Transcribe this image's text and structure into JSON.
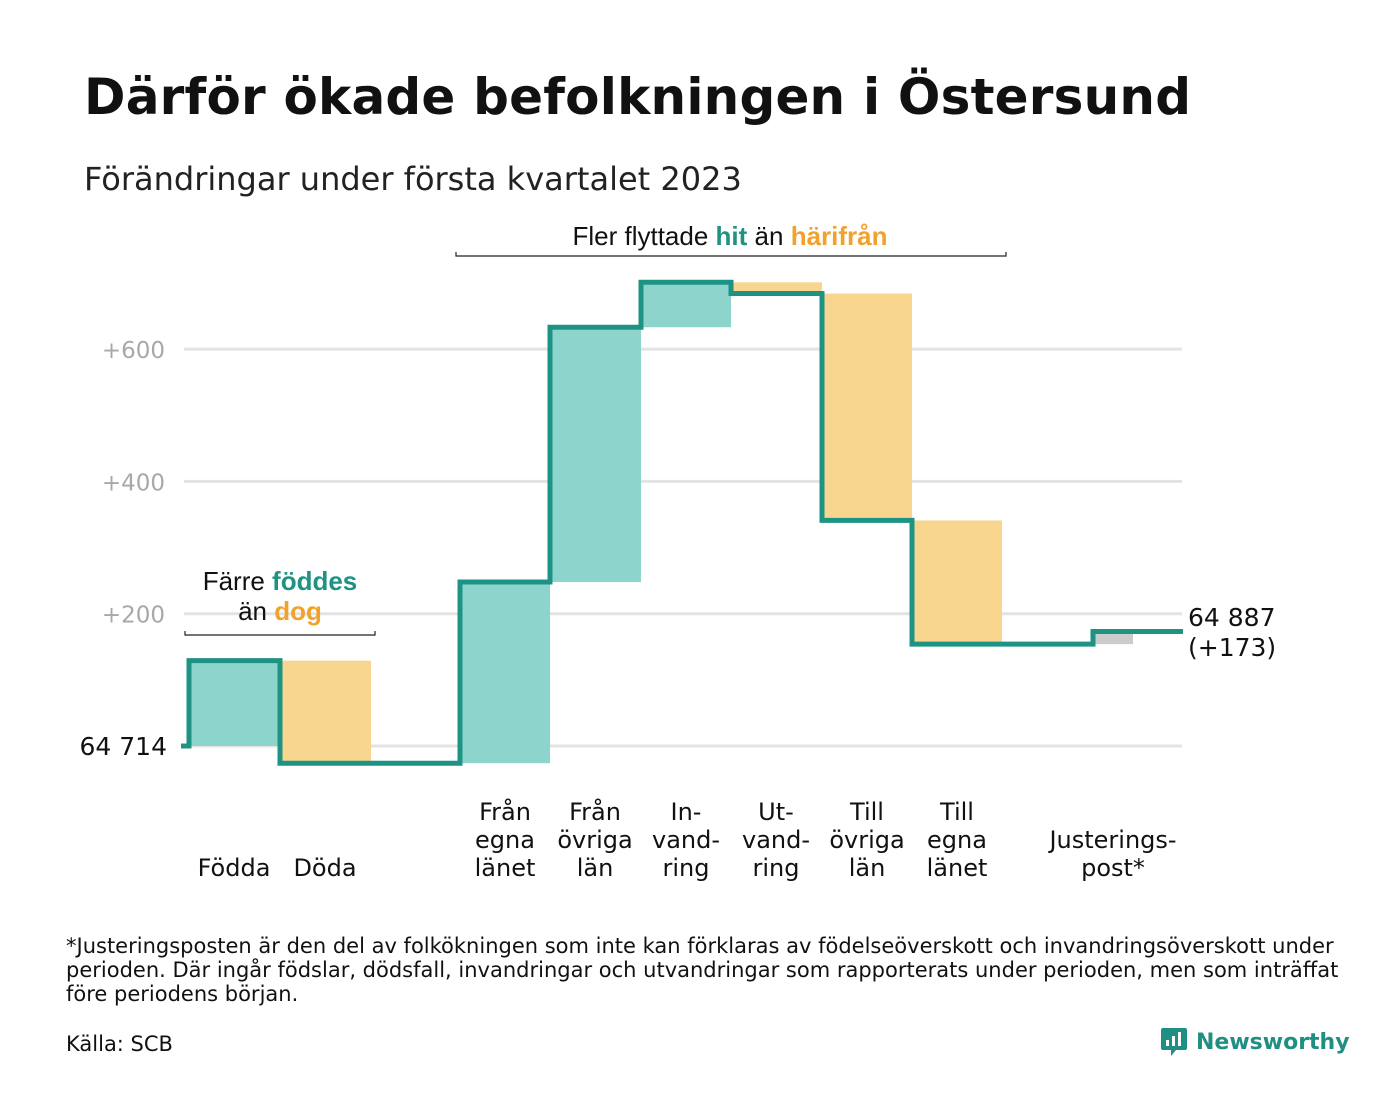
{
  "title": "Därför ökade befolkningen i Östersund",
  "subtitle": "Förändringar under första kvartalet 2023",
  "footnote": "*Justeringsposten är den del av folkökningen som inte kan förklaras av födelseöverskott och invandringsöverskott under perioden. Där ingår födslar, dödsfall, invandringar och utvandringar som rapporterats under perioden, men som inträffat före periodens början.",
  "source": "Källa: SCB",
  "brand": "Newsworthy",
  "brand_icon": "newsworthy-logo-icon",
  "colors": {
    "increase": "#8dd5cc",
    "decrease": "#f9d68f",
    "adjustment": "#cccccc",
    "line": "#1e9384",
    "teal_text": "#1e9384",
    "orange_text": "#f2a22b",
    "grid": "#e3e3e3",
    "tick": "#a8a8a8"
  },
  "chart_data": {
    "type": "waterfall",
    "start_label": "64 714",
    "start_value": 64714,
    "end_label": "64 887",
    "end_change": "(+173)",
    "end_value": 64887,
    "yticks": [
      {
        "value": 200,
        "label": "+200"
      },
      {
        "value": 400,
        "label": "+400"
      },
      {
        "value": 600,
        "label": "+600"
      }
    ],
    "ylim": [
      -40,
      730
    ],
    "steps": [
      {
        "label": "Födda",
        "from": 0,
        "to": 129,
        "kind": "increase"
      },
      {
        "label": "Döda",
        "from": 129,
        "to": -26,
        "kind": "decrease"
      },
      {
        "label": "Från egna länet",
        "from": -26,
        "to": 248,
        "kind": "increase"
      },
      {
        "label": "Från övriga län",
        "from": 248,
        "to": 633,
        "kind": "increase"
      },
      {
        "label": "In-vand-ring",
        "from": 633,
        "to": 701,
        "kind": "increase"
      },
      {
        "label": "Ut-vand-ring",
        "from": 701,
        "to": 684,
        "kind": "decrease"
      },
      {
        "label": "Till övriga län",
        "from": 684,
        "to": 341,
        "kind": "decrease"
      },
      {
        "label": "Till egna länet",
        "from": 341,
        "to": 154,
        "kind": "decrease"
      },
      {
        "label": "Justerings-post*",
        "from": 154,
        "to": 173,
        "kind": "adjustment"
      }
    ],
    "category_labels": [
      {
        "lines": [
          "Födda"
        ]
      },
      {
        "lines": [
          "Döda"
        ]
      },
      {
        "lines": [
          "Från",
          "egna",
          "länet"
        ]
      },
      {
        "lines": [
          "Från",
          "övriga",
          "län"
        ]
      },
      {
        "lines": [
          "In-",
          "vand-",
          "ring"
        ]
      },
      {
        "lines": [
          "Ut-",
          "vand-",
          "ring"
        ]
      },
      {
        "lines": [
          "Till",
          "övriga",
          "län"
        ]
      },
      {
        "lines": [
          "Till",
          "egna",
          "länet"
        ]
      },
      {
        "lines": [
          "Justerings-",
          "post*"
        ]
      }
    ],
    "annotations": [
      {
        "lines": [
          [
            {
              "text": "Färre ",
              "style": "plain"
            },
            {
              "text": "föddes",
              "style": "teal"
            }
          ],
          [
            {
              "text": "än ",
              "style": "plain"
            },
            {
              "text": "dog",
              "style": "orange"
            }
          ]
        ]
      },
      {
        "lines": [
          [
            {
              "text": "Fler flyttade ",
              "style": "plain"
            },
            {
              "text": "hit",
              "style": "teal"
            },
            {
              "text": " än ",
              "style": "plain"
            },
            {
              "text": "härifrån",
              "style": "orange"
            }
          ]
        ]
      }
    ]
  }
}
